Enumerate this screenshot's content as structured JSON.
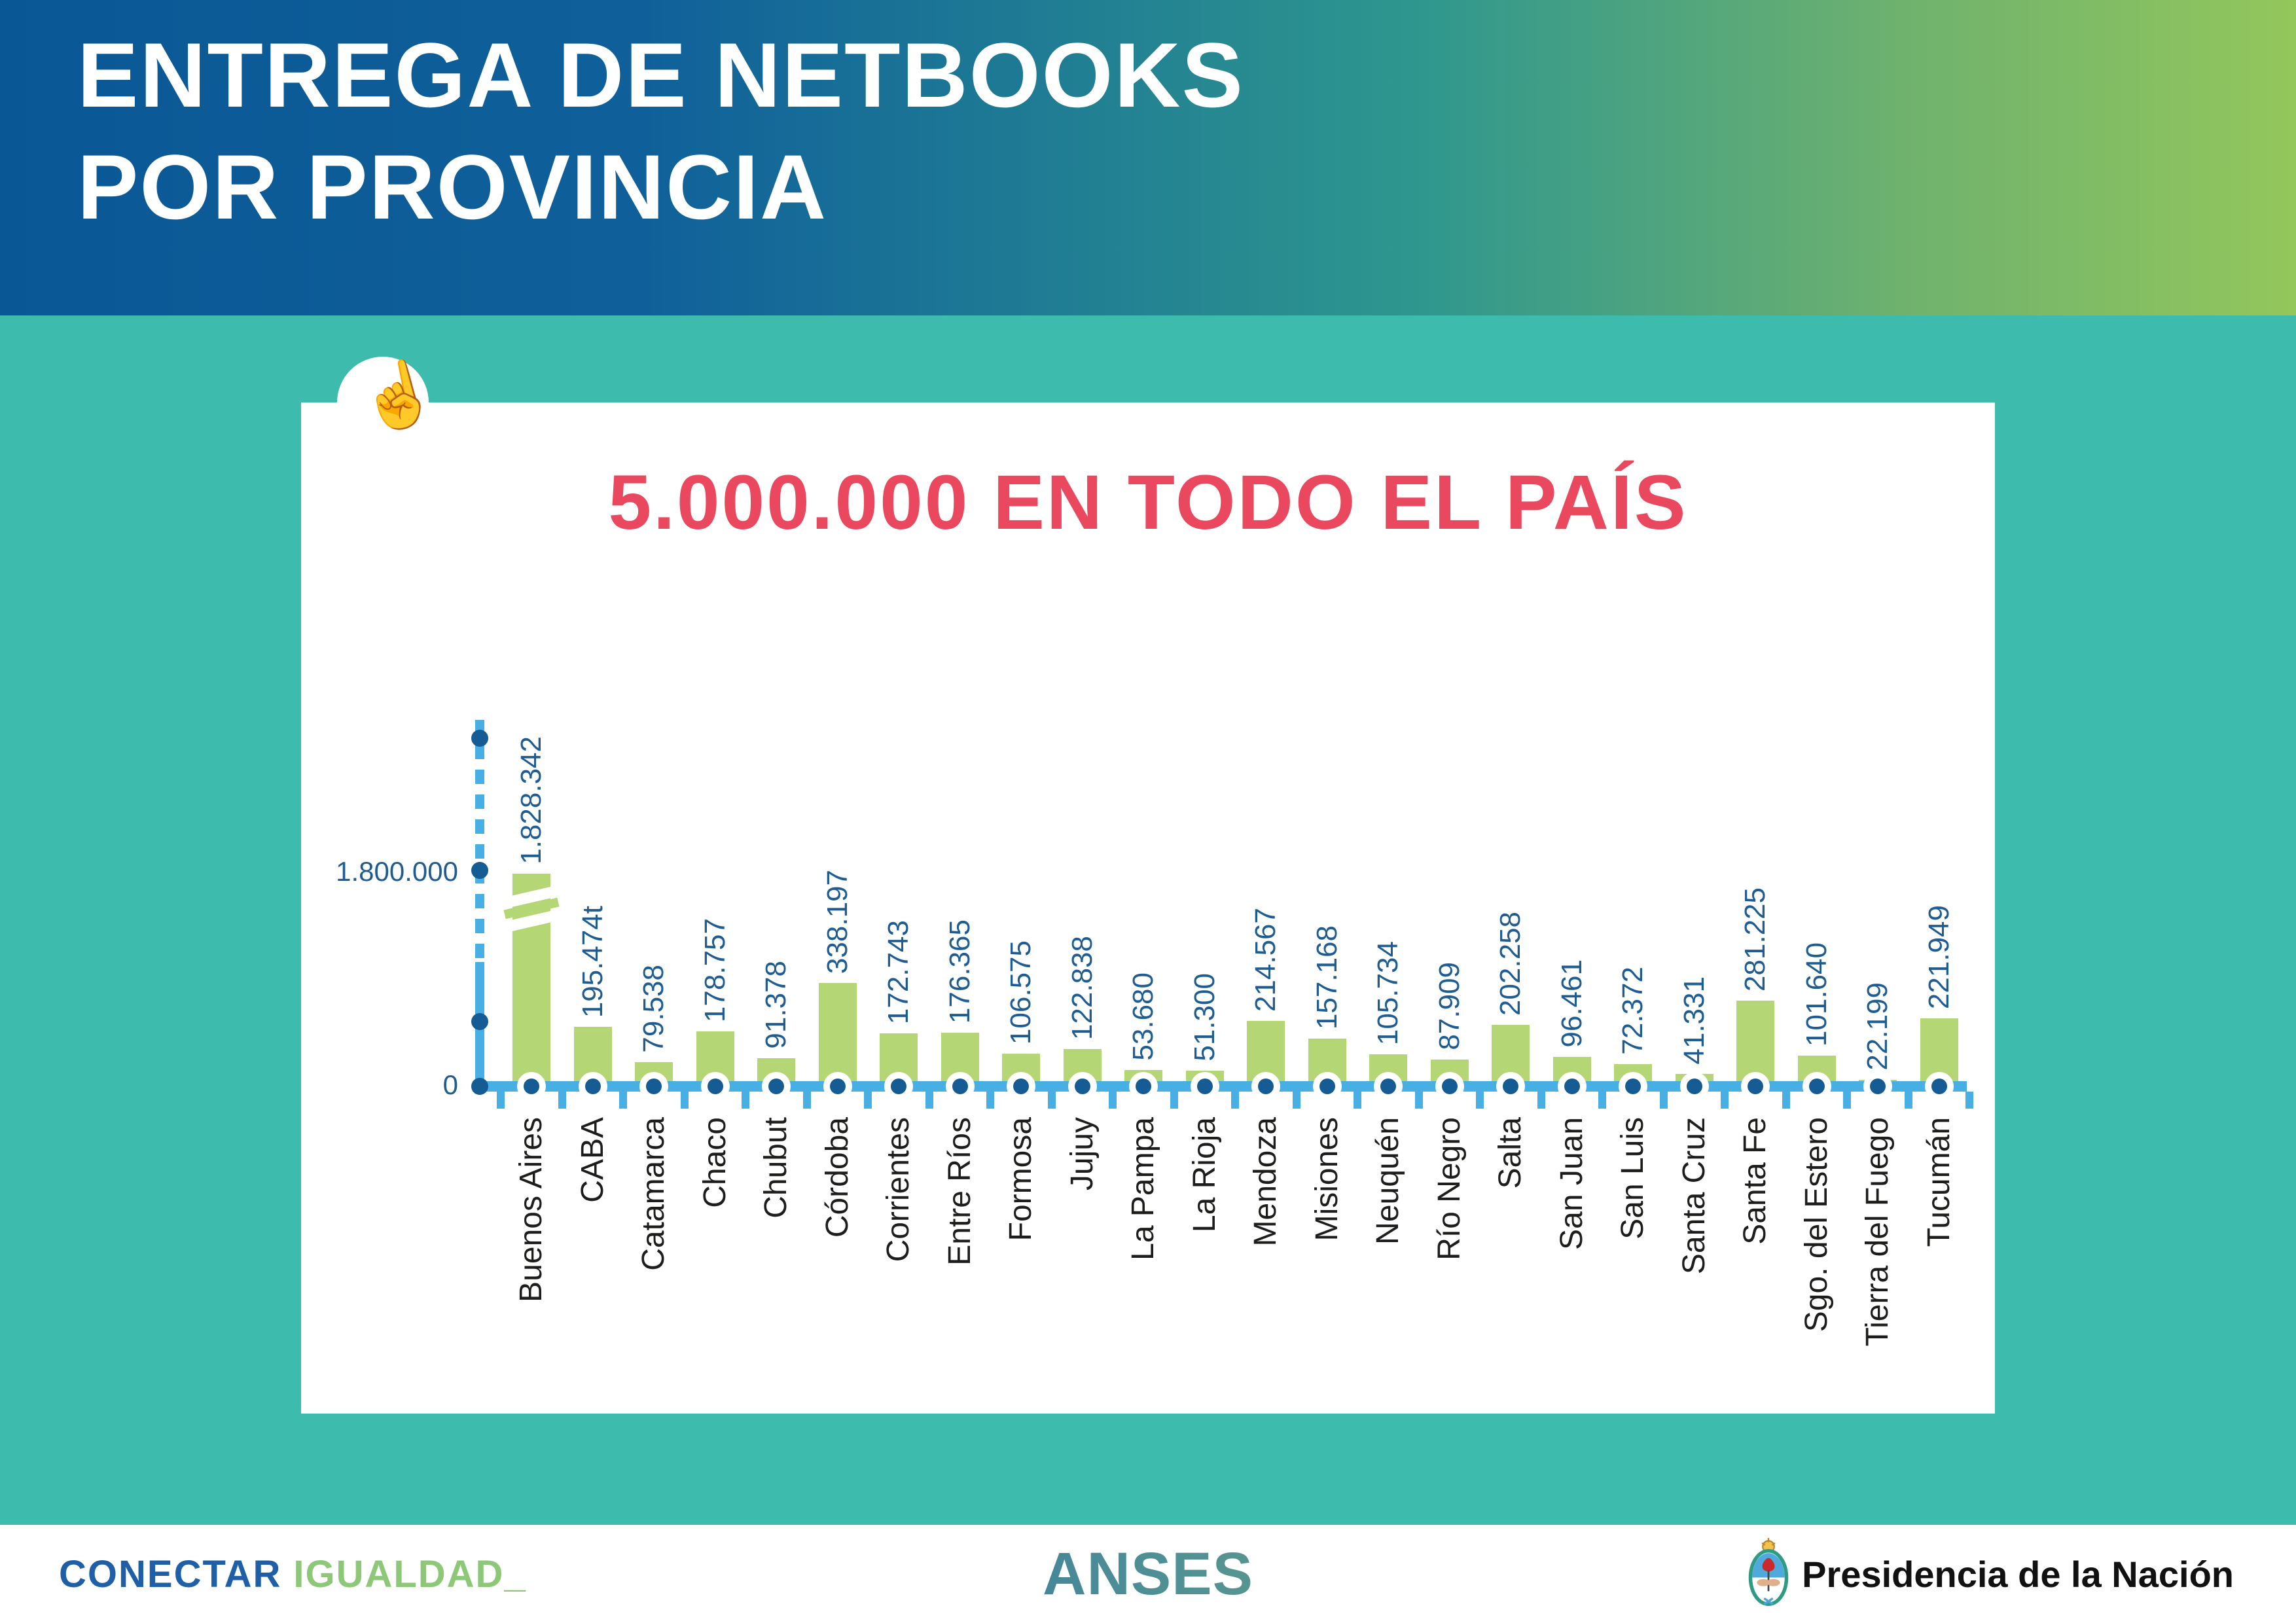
{
  "header": {
    "title_line1": "ENTREGA DE NETBOOKS",
    "title_line2": "POR PROVINCIA"
  },
  "card": {
    "headline": "5.000.000 EN TODO EL PAÍS"
  },
  "chart_data": {
    "type": "bar",
    "title": "5.000.000 EN TODO EL PAÍS",
    "categories": [
      "Buenos Aires",
      "CABA",
      "Catamarca",
      "Chaco",
      "Chubut",
      "Córdoba",
      "Corrientes",
      "Entre Ríos",
      "Formosa",
      "Jujuy",
      "La Pampa",
      "La Rioja",
      "Mendoza",
      "Misiones",
      "Neuquén",
      "Río Negro",
      "Salta",
      "San Juan",
      "San Luis",
      "Santa Cruz",
      "Santa Fe",
      "Sgo. del Estero",
      "Tierra del Fuego",
      "Tucumán"
    ],
    "values": [
      1828342,
      195474,
      79538,
      178757,
      91378,
      338197,
      172743,
      176365,
      106575,
      122838,
      53680,
      51300,
      214567,
      157168,
      105734,
      87909,
      202258,
      96461,
      72372,
      41331,
      281225,
      101640,
      22199,
      221949
    ],
    "value_labels": [
      "1.828.342",
      "195.474t",
      "79.538",
      "178.757",
      "91.378",
      "338.197",
      "172.743",
      "176.365",
      "106.575",
      "122.838",
      "53.680",
      "51.300",
      "214.567",
      "157.168",
      "105.734",
      "87.909",
      "202.258",
      "96.461",
      "72.372",
      "41.331",
      "281.225",
      "101.640",
      "22.199",
      "221.949"
    ],
    "y_axis": {
      "tick_labels": [
        "1.800.000",
        "0"
      ],
      "ylim": [
        0,
        1800000
      ],
      "axis_break_bar": "Buenos Aires"
    },
    "legend": "none",
    "grid": "off",
    "colors": {
      "bar": "#B5D674",
      "axis": "#47AFE3",
      "points": "#155B94",
      "value_labels": "#1E5C92",
      "category_labels": "#1D1D1B",
      "headline": "#E9485F"
    }
  },
  "footer": {
    "conectar": "CONECTAR",
    "igualdad": "IGUALDAD_",
    "anses": "ANSES",
    "presidencia": "Presidencia de la Nación"
  },
  "icons": {
    "cursor": "pointing-hand-cursor",
    "coat_of_arms": "argentina-coat-of-arms"
  }
}
